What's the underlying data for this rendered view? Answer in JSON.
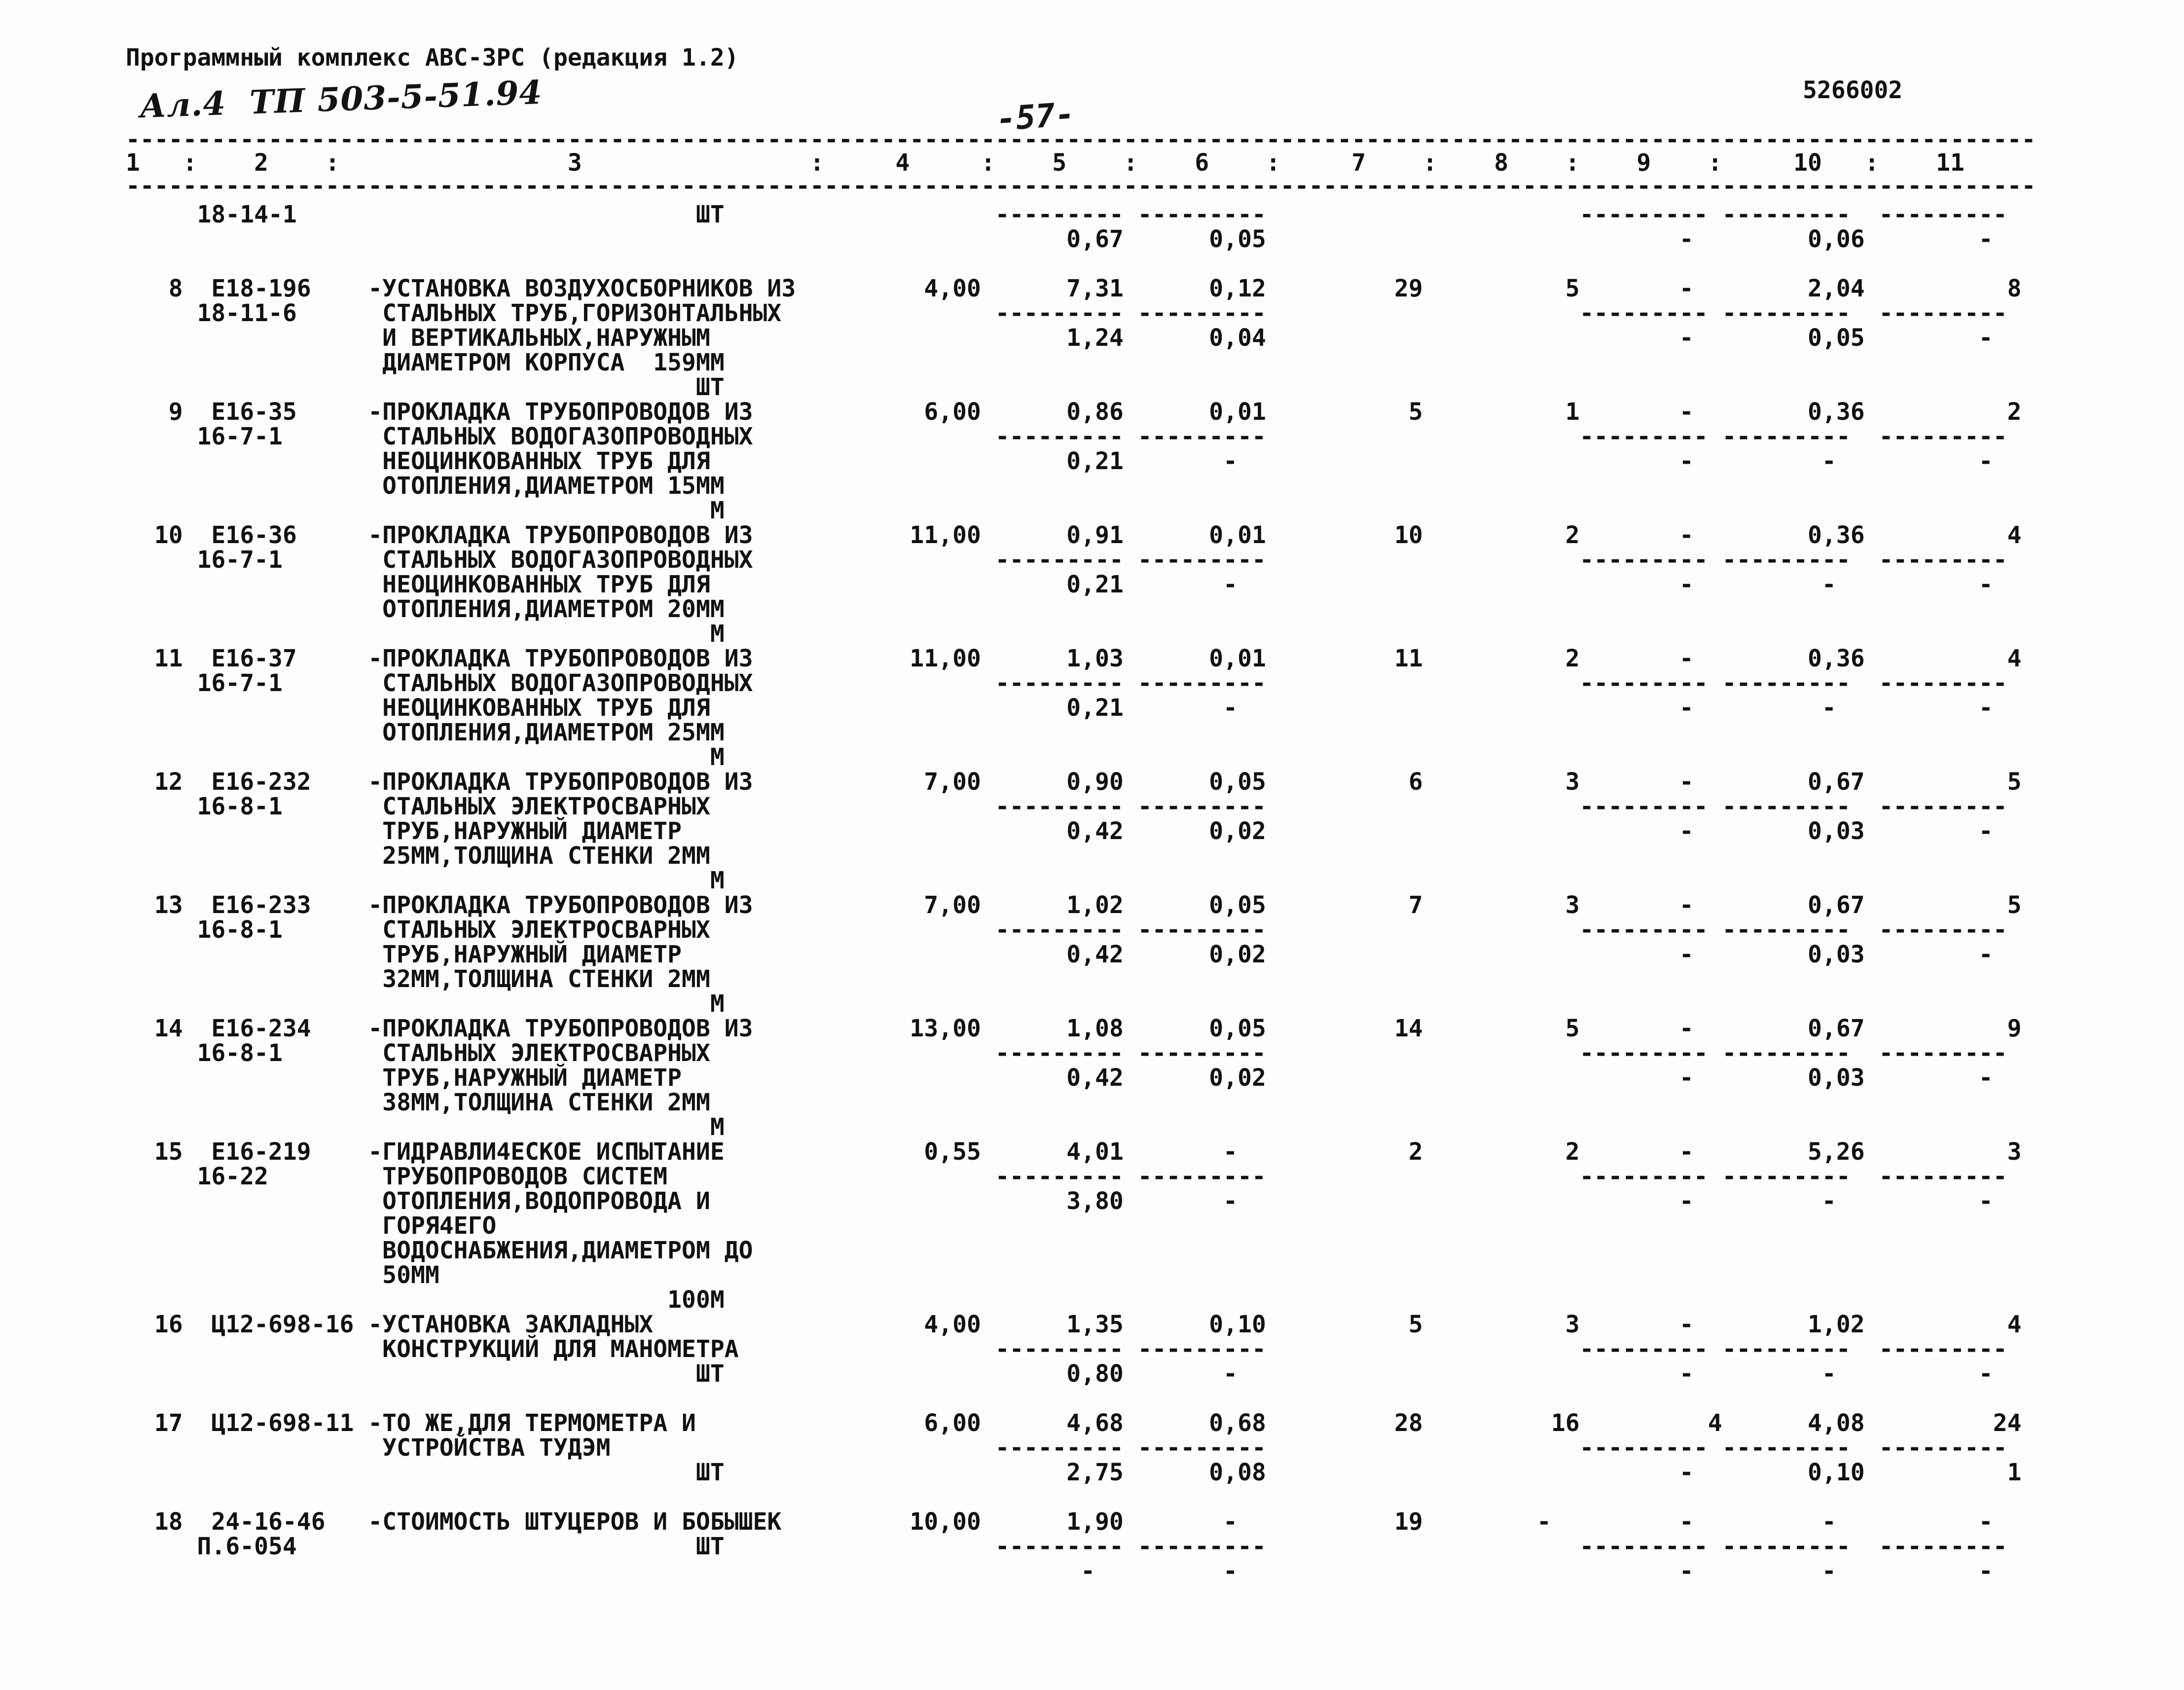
{
  "page": {
    "header_title": "Программный комплекс АВС-3РС (редакция 1.2)",
    "handwritten_note": "Ал.4  ТП 503-5-51.94",
    "page_number": "-57-",
    "doc_code": "5266002"
  },
  "table": {
    "column_numbers": [
      "1",
      "2",
      "3",
      "4",
      "5",
      "6",
      "7",
      "8",
      "9",
      "10",
      "11"
    ],
    "rows": [
      {
        "no": "",
        "code": "",
        "code2": "18-14-1",
        "desc": [],
        "unit": "ШТ",
        "qty": "",
        "upper": null,
        "lower": [
          "0,67",
          "0,05",
          "-",
          "0,06",
          "-"
        ]
      },
      {
        "no": "8",
        "code": "Е18-196",
        "code2": "18-11-6",
        "desc": [
          "-УСТАНОВКА ВОЗДУХОСБОРНИКОВ ИЗ",
          "СТАЛЬНЫХ ТРУБ,ГОРИЗОНТАЛЬНЫХ",
          "И ВЕРТИКАЛЬНЫХ,НАРУЖНЫМ",
          "ДИАМЕТРОМ КОРПУСА  159ММ"
        ],
        "unit": "ШТ",
        "qty": "4,00",
        "upper": [
          "7,31",
          "0,12",
          "29",
          "5",
          "-",
          "2,04",
          "8"
        ],
        "lower": [
          "1,24",
          "0,04",
          "-",
          "0,05",
          "-"
        ]
      },
      {
        "no": "9",
        "code": "Е16-35",
        "code2": "16-7-1",
        "desc": [
          "-ПРОКЛАДКА ТРУБОПРОВОДОВ ИЗ",
          "СТАЛЬНЫХ ВОДОГАЗОПРОВОДНЫХ",
          "НЕОЦИНКОВАННЫХ ТРУБ ДЛЯ",
          "ОТОПЛЕНИЯ,ДИАМЕТРОМ 15ММ"
        ],
        "unit": "М",
        "qty": "6,00",
        "upper": [
          "0,86",
          "0,01",
          "5",
          "1",
          "-",
          "0,36",
          "2"
        ],
        "lower": [
          "0,21",
          "-",
          "-",
          "-",
          "-"
        ]
      },
      {
        "no": "10",
        "code": "Е16-36",
        "code2": "16-7-1",
        "desc": [
          "-ПРОКЛАДКА ТРУБОПРОВОДОВ ИЗ",
          "СТАЛЬНЫХ ВОДОГАЗОПРОВОДНЫХ",
          "НЕОЦИНКОВАННЫХ ТРУБ ДЛЯ",
          "ОТОПЛЕНИЯ,ДИАМЕТРОМ 20ММ"
        ],
        "unit": "М",
        "qty": "11,00",
        "upper": [
          "0,91",
          "0,01",
          "10",
          "2",
          "-",
          "0,36",
          "4"
        ],
        "lower": [
          "0,21",
          "-",
          "-",
          "-",
          "-"
        ]
      },
      {
        "no": "11",
        "code": "Е16-37",
        "code2": "16-7-1",
        "desc": [
          "-ПРОКЛАДКА ТРУБОПРОВОДОВ ИЗ",
          "СТАЛЬНЫХ ВОДОГАЗОПРОВОДНЫХ",
          "НЕОЦИНКОВАННЫХ ТРУБ ДЛЯ",
          "ОТОПЛЕНИЯ,ДИАМЕТРОМ 25ММ"
        ],
        "unit": "М",
        "qty": "11,00",
        "upper": [
          "1,03",
          "0,01",
          "11",
          "2",
          "-",
          "0,36",
          "4"
        ],
        "lower": [
          "0,21",
          "-",
          "-",
          "-",
          "-"
        ]
      },
      {
        "no": "12",
        "code": "Е16-232",
        "code2": "16-8-1",
        "desc": [
          "-ПРОКЛАДКА ТРУБОПРОВОДОВ ИЗ",
          "СТАЛЬНЫХ ЭЛЕКТРОСВАРНЫХ",
          "ТРУБ,НАРУЖНЫЙ ДИАМЕТР",
          "25ММ,ТОЛЩИНА СТЕНКИ 2ММ"
        ],
        "unit": "М",
        "qty": "7,00",
        "upper": [
          "0,90",
          "0,05",
          "6",
          "3",
          "-",
          "0,67",
          "5"
        ],
        "lower": [
          "0,42",
          "0,02",
          "-",
          "0,03",
          "-"
        ]
      },
      {
        "no": "13",
        "code": "Е16-233",
        "code2": "16-8-1",
        "desc": [
          "-ПРОКЛАДКА ТРУБОПРОВОДОВ ИЗ",
          "СТАЛЬНЫХ ЭЛЕКТРОСВАРНЫХ",
          "ТРУБ,НАРУЖНЫЙ ДИАМЕТР",
          "32ММ,ТОЛЩИНА СТЕНКИ 2ММ"
        ],
        "unit": "М",
        "qty": "7,00",
        "upper": [
          "1,02",
          "0,05",
          "7",
          "3",
          "-",
          "0,67",
          "5"
        ],
        "lower": [
          "0,42",
          "0,02",
          "-",
          "0,03",
          "-"
        ]
      },
      {
        "no": "14",
        "code": "Е16-234",
        "code2": "16-8-1",
        "desc": [
          "-ПРОКЛАДКА ТРУБОПРОВОДОВ ИЗ",
          "СТАЛЬНЫХ ЭЛЕКТРОСВАРНЫХ",
          "ТРУБ,НАРУЖНЫЙ ДИАМЕТР",
          "38ММ,ТОЛЩИНА СТЕНКИ 2ММ"
        ],
        "unit": "М",
        "qty": "13,00",
        "upper": [
          "1,08",
          "0,05",
          "14",
          "5",
          "-",
          "0,67",
          "9"
        ],
        "lower": [
          "0,42",
          "0,02",
          "-",
          "0,03",
          "-"
        ]
      },
      {
        "no": "15",
        "code": "Е16-219",
        "code2": "16-22",
        "desc": [
          "-ГИДРАВЛИ4ЕСКОЕ ИСПЫТАНИЕ",
          "ТРУБОПРОВОДОВ СИСТЕМ",
          "ОТОПЛЕНИЯ,ВОДОПРОВОДА И",
          "ГОРЯ4ЕГО",
          "ВОДОСНАБЖЕНИЯ,ДИАМЕТРОМ ДО",
          "50ММ"
        ],
        "unit": "100М",
        "qty": "0,55",
        "upper": [
          "4,01",
          "-",
          "2",
          "2",
          "-",
          "5,26",
          "3"
        ],
        "lower": [
          "3,80",
          "-",
          "-",
          "-",
          "-"
        ]
      },
      {
        "no": "16",
        "code": "Ц12-698-16",
        "code2": "",
        "desc": [
          "-УСТАНОВКА ЗАКЛАДНЫХ",
          "КОНСТРУКЦИЙ ДЛЯ МАНОМЕТРА"
        ],
        "unit": "ШТ",
        "qty": "4,00",
        "upper": [
          "1,35",
          "0,10",
          "5",
          "3",
          "-",
          "1,02",
          "4"
        ],
        "lower": [
          "0,80",
          "-",
          "-",
          "-",
          "-"
        ]
      },
      {
        "no": "17",
        "code": "Ц12-698-11",
        "code2": "",
        "desc": [
          "-ТО ЖЕ,ДЛЯ ТЕРМОМЕТРА И",
          "УСТРОЙСТВА ТУДЭМ"
        ],
        "unit": "ШТ",
        "qty": "6,00",
        "upper": [
          "4,68",
          "0,68",
          "28",
          "16",
          "4",
          "4,08",
          "24"
        ],
        "lower": [
          "2,75",
          "0,08",
          "-",
          "0,10",
          "1"
        ]
      },
      {
        "no": "18",
        "code": "24-16-46",
        "code2": "П.6-054",
        "desc": [
          "-СТОИМОСТЬ ШТУЦЕРОВ И БОБЫШЕК"
        ],
        "unit": "ШТ",
        "qty": "10,00",
        "upper": [
          "1,90",
          "-",
          "19",
          "-",
          "-",
          "-",
          "-"
        ],
        "lower": [
          "-",
          "-",
          "-",
          "-",
          "-"
        ]
      }
    ]
  }
}
